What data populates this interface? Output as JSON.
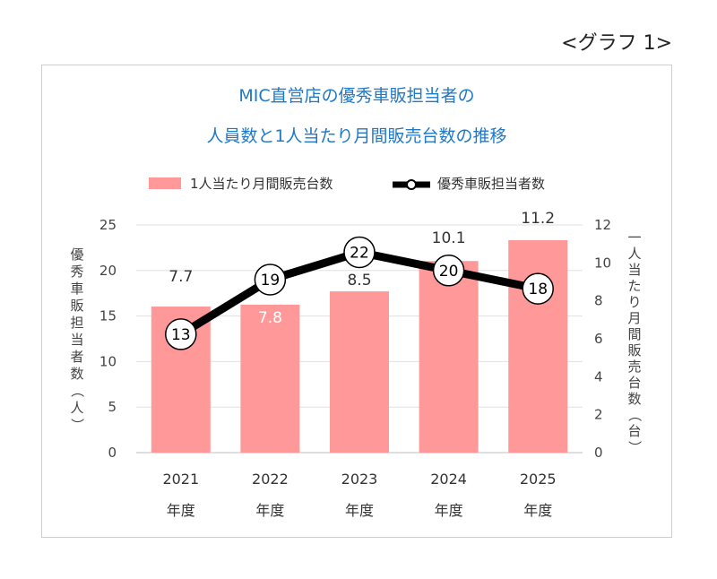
{
  "header": {
    "graph_label": "<グラフ 1>"
  },
  "chart_data": {
    "type": "bar",
    "title": "MIC直営店の優秀車販担当者の",
    "subtitle": "人員数と1人当たり月間販売台数の推移",
    "categories": [
      "2021",
      "2022",
      "2023",
      "2024",
      "2025"
    ],
    "category_suffix": "年度",
    "series": [
      {
        "name": "1人当たり月間販売台数",
        "type": "bar",
        "axis": "right",
        "values": [
          7.7,
          7.8,
          8.5,
          10.1,
          11.2
        ],
        "labels": [
          "7.7",
          "7.8",
          "8.5",
          "10.1",
          "11.2"
        ],
        "color": "#ff9999"
      },
      {
        "name": "優秀車販担当者数",
        "type": "line",
        "axis": "left",
        "values": [
          13,
          19,
          22,
          20,
          18
        ],
        "labels": [
          "13",
          "19",
          "22",
          "20",
          "18"
        ],
        "color": "#000000"
      }
    ],
    "ylabel": "優秀車販担当者数（人）",
    "y2label": "一人当たり月間販売台数（台）",
    "ylim": [
      0,
      25
    ],
    "yticks": [
      "0",
      "5",
      "10",
      "15",
      "20",
      "25"
    ],
    "y2lim": [
      0,
      12
    ],
    "y2ticks": [
      "0",
      "2",
      "4",
      "6",
      "8",
      "10",
      "12"
    ],
    "title_color": "#1f78c8",
    "grid": true,
    "legend_position": "top"
  }
}
